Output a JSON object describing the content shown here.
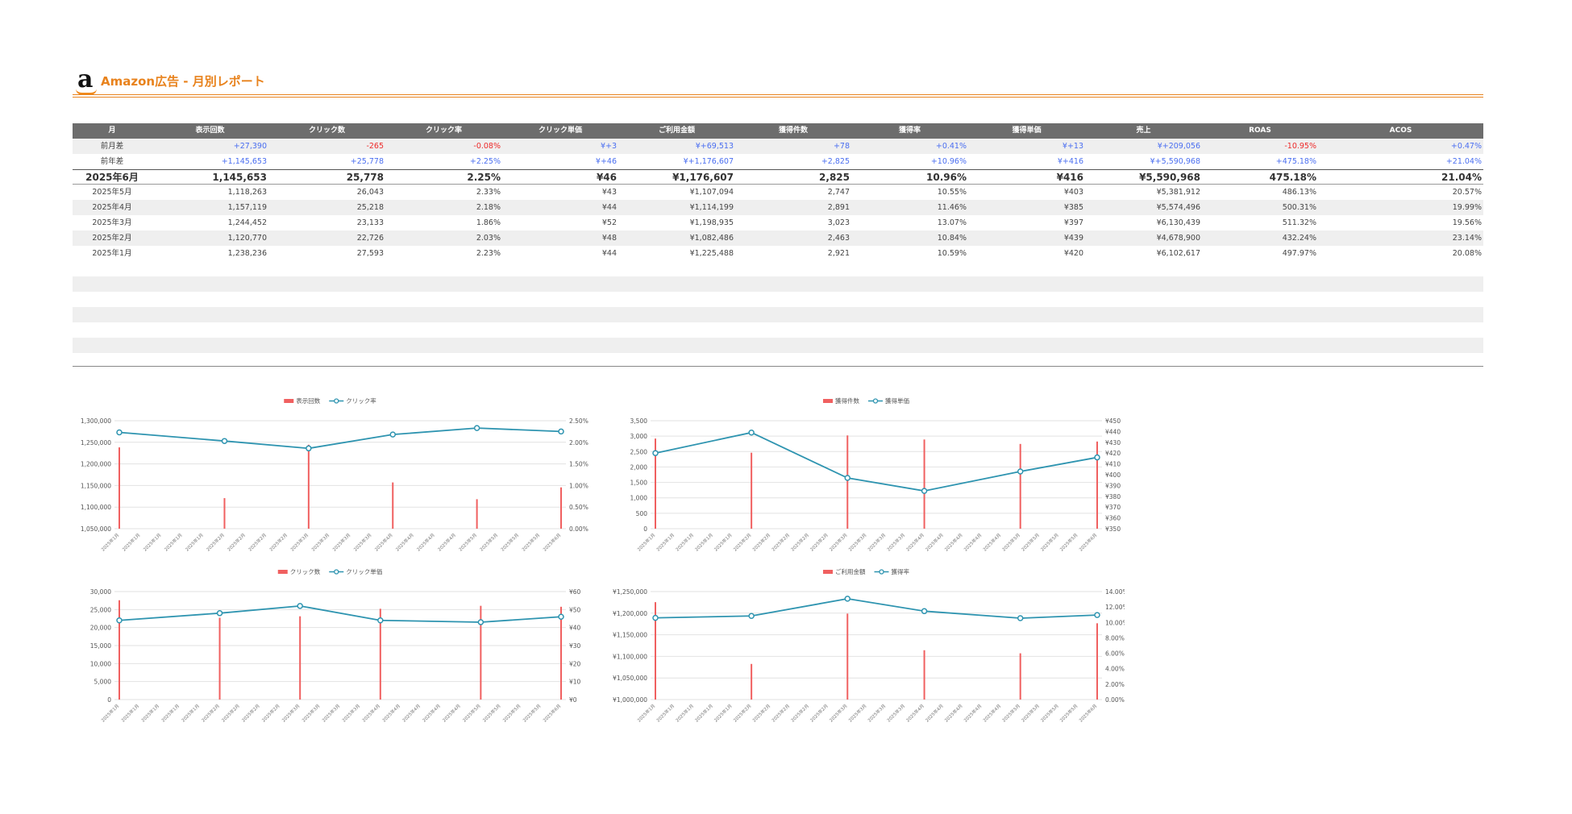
{
  "header": {
    "logo_letter": "a",
    "title": "Amazon広告 - 月別レポート"
  },
  "colors": {
    "accent": "#e8821c",
    "bar": "#f06060",
    "line": "#2e94b0",
    "header_bg": "#6d6d6d",
    "positive": "#4a6ef0",
    "negative": "#ee2a2a"
  },
  "table": {
    "columns": [
      "月",
      "表示回数",
      "クリック数",
      "クリック率",
      "クリック単価",
      "ご利用金額",
      "獲得件数",
      "獲得率",
      "獲得単価",
      "売上",
      "ROAS",
      "ACOS"
    ],
    "diff_rows": [
      {
        "label": "前月差",
        "cells": [
          {
            "v": "+27,390",
            "s": "pos"
          },
          {
            "v": "-265",
            "s": "neg"
          },
          {
            "v": "-0.08%",
            "s": "neg"
          },
          {
            "v": "¥+3",
            "s": "pos"
          },
          {
            "v": "¥+69,513",
            "s": "pos"
          },
          {
            "v": "+78",
            "s": "pos"
          },
          {
            "v": "+0.41%",
            "s": "pos"
          },
          {
            "v": "¥+13",
            "s": "pos"
          },
          {
            "v": "¥+209,056",
            "s": "pos"
          },
          {
            "v": "-10.95%",
            "s": "neg"
          },
          {
            "v": "+0.47%",
            "s": "pos"
          }
        ]
      },
      {
        "label": "前年差",
        "cells": [
          {
            "v": "+1,145,653",
            "s": "pos"
          },
          {
            "v": "+25,778",
            "s": "pos"
          },
          {
            "v": "+2.25%",
            "s": "pos"
          },
          {
            "v": "¥+46",
            "s": "pos"
          },
          {
            "v": "¥+1,176,607",
            "s": "pos"
          },
          {
            "v": "+2,825",
            "s": "pos"
          },
          {
            "v": "+10.96%",
            "s": "pos"
          },
          {
            "v": "¥+416",
            "s": "pos"
          },
          {
            "v": "¥+5,590,968",
            "s": "pos"
          },
          {
            "v": "+475.18%",
            "s": "pos"
          },
          {
            "v": "+21.04%",
            "s": "pos"
          }
        ]
      }
    ],
    "current_row": [
      "2025年6月",
      "1,145,653",
      "25,778",
      "2.25%",
      "¥46",
      "¥1,176,607",
      "2,825",
      "10.96%",
      "¥416",
      "¥5,590,968",
      "475.18%",
      "21.04%"
    ],
    "rows": [
      [
        "2025年5月",
        "1,118,263",
        "26,043",
        "2.33%",
        "¥43",
        "¥1,107,094",
        "2,747",
        "10.55%",
        "¥403",
        "¥5,381,912",
        "486.13%",
        "20.57%"
      ],
      [
        "2025年4月",
        "1,157,119",
        "25,218",
        "2.18%",
        "¥44",
        "¥1,114,199",
        "2,891",
        "11.46%",
        "¥385",
        "¥5,574,496",
        "500.31%",
        "19.99%"
      ],
      [
        "2025年3月",
        "1,244,452",
        "23,133",
        "1.86%",
        "¥52",
        "¥1,198,935",
        "3,023",
        "13.07%",
        "¥397",
        "¥6,130,439",
        "511.32%",
        "19.56%"
      ],
      [
        "2025年2月",
        "1,120,770",
        "22,726",
        "2.03%",
        "¥48",
        "¥1,082,486",
        "2,463",
        "10.84%",
        "¥439",
        "¥4,678,900",
        "432.24%",
        "23.14%"
      ],
      [
        "2025年1月",
        "1,238,236",
        "27,593",
        "2.23%",
        "¥44",
        "¥1,225,488",
        "2,921",
        "10.59%",
        "¥420",
        "¥6,102,617",
        "497.97%",
        "20.08%"
      ]
    ]
  },
  "chart_data": [
    {
      "type": "bar+line",
      "legend": [
        "表示回数",
        "クリック率"
      ],
      "x": [
        "2025年1月",
        "2025年1月",
        "2025年1月",
        "2025年1月",
        "2025年1月",
        "2025年2月",
        "2025年2月",
        "2025年2月",
        "2025年2月",
        "2025年3月",
        "2025年3月",
        "2025年3月",
        "2025年3月",
        "2025年4月",
        "2025年4月",
        "2025年4月",
        "2025年4月",
        "2025年5月",
        "2025年5月",
        "2025年5月",
        "2025年5月",
        "2025年6月"
      ],
      "bars": [
        {
          "i": 0,
          "v": 1238236
        },
        {
          "i": 5,
          "v": 1120770
        },
        {
          "i": 9,
          "v": 1244452
        },
        {
          "i": 13,
          "v": 1157119
        },
        {
          "i": 17,
          "v": 1118263
        },
        {
          "i": 21,
          "v": 1145653
        }
      ],
      "line": [
        {
          "i": 0,
          "v": 2.23
        },
        {
          "i": 5,
          "v": 2.03
        },
        {
          "i": 9,
          "v": 1.86
        },
        {
          "i": 13,
          "v": 2.18
        },
        {
          "i": 17,
          "v": 2.33
        },
        {
          "i": 21,
          "v": 2.25
        }
      ],
      "y_left": {
        "min": 1050000,
        "max": 1300000,
        "ticks": [
          "1,300,000",
          "1,250,000",
          "1,200,000",
          "1,150,000",
          "1,100,000",
          "1,050,000"
        ]
      },
      "y_right": {
        "min": 0,
        "max": 2.5,
        "ticks": [
          "2.50%",
          "2.00%",
          "1.50%",
          "1.00%",
          "0.50%",
          "0.00%"
        ]
      }
    },
    {
      "type": "bar+line",
      "legend": [
        "獲得件数",
        "獲得単価"
      ],
      "x": [
        "2025年1月",
        "2025年1月",
        "2025年1月",
        "2025年1月",
        "2025年1月",
        "2025年2月",
        "2025年2月",
        "2025年2月",
        "2025年2月",
        "2025年2月",
        "2025年3月",
        "2025年3月",
        "2025年3月",
        "2025年3月",
        "2025年4月",
        "2025年4月",
        "2025年4月",
        "2025年4月",
        "2025年4月",
        "2025年5月",
        "2025年5月",
        "2025年5月",
        "2025年5月",
        "2025年6月"
      ],
      "bars": [
        {
          "i": 0,
          "v": 2921
        },
        {
          "i": 5,
          "v": 2463
        },
        {
          "i": 10,
          "v": 3023
        },
        {
          "i": 14,
          "v": 2891
        },
        {
          "i": 19,
          "v": 2747
        },
        {
          "i": 23,
          "v": 2825
        }
      ],
      "line": [
        {
          "i": 0,
          "v": 420
        },
        {
          "i": 5,
          "v": 439
        },
        {
          "i": 10,
          "v": 397
        },
        {
          "i": 14,
          "v": 385
        },
        {
          "i": 19,
          "v": 403
        },
        {
          "i": 23,
          "v": 416
        }
      ],
      "y_left": {
        "min": 0,
        "max": 3500,
        "ticks": [
          "3,500",
          "3,000",
          "2,500",
          "2,000",
          "1,500",
          "1,000",
          "500",
          "0"
        ]
      },
      "y_right": {
        "min": 350,
        "max": 450,
        "ticks": [
          "¥450",
          "¥440",
          "¥430",
          "¥420",
          "¥410",
          "¥400",
          "¥390",
          "¥380",
          "¥370",
          "¥360",
          "¥350"
        ]
      }
    },
    {
      "type": "bar+line",
      "legend": [
        "クリック数",
        "クリック単価"
      ],
      "x": [
        "2025年1月",
        "2025年1月",
        "2025年1月",
        "2025年1月",
        "2025年1月",
        "2025年2月",
        "2025年2月",
        "2025年2月",
        "2025年2月",
        "2025年3月",
        "2025年3月",
        "2025年3月",
        "2025年3月",
        "2025年4月",
        "2025年4月",
        "2025年4月",
        "2025年4月",
        "2025年4月",
        "2025年5月",
        "2025年5月",
        "2025年5月",
        "2025年5月",
        "2025年6月"
      ],
      "bars": [
        {
          "i": 0,
          "v": 27593
        },
        {
          "i": 5,
          "v": 22726
        },
        {
          "i": 9,
          "v": 23133
        },
        {
          "i": 13,
          "v": 25218
        },
        {
          "i": 18,
          "v": 26043
        },
        {
          "i": 22,
          "v": 25778
        }
      ],
      "line": [
        {
          "i": 0,
          "v": 44
        },
        {
          "i": 5,
          "v": 48
        },
        {
          "i": 9,
          "v": 52
        },
        {
          "i": 13,
          "v": 44
        },
        {
          "i": 18,
          "v": 43
        },
        {
          "i": 22,
          "v": 46
        }
      ],
      "y_left": {
        "min": 0,
        "max": 30000,
        "ticks": [
          "30,000",
          "25,000",
          "20,000",
          "15,000",
          "10,000",
          "5,000",
          "0"
        ]
      },
      "y_right": {
        "min": 0,
        "max": 60,
        "ticks": [
          "¥60",
          "¥50",
          "¥40",
          "¥30",
          "¥20",
          "¥10",
          "¥0"
        ]
      }
    },
    {
      "type": "bar+line",
      "legend": [
        "ご利用金額",
        "獲得率"
      ],
      "x": [
        "2025年1月",
        "2025年1月",
        "2025年1月",
        "2025年1月",
        "2025年1月",
        "2025年2月",
        "2025年2月",
        "2025年2月",
        "2025年2月",
        "2025年2月",
        "2025年3月",
        "2025年3月",
        "2025年3月",
        "2025年3月",
        "2025年4月",
        "2025年4月",
        "2025年4月",
        "2025年4月",
        "2025年4月",
        "2025年5月",
        "2025年5月",
        "2025年5月",
        "2025年5月",
        "2025年6月"
      ],
      "bars": [
        {
          "i": 0,
          "v": 1225488
        },
        {
          "i": 5,
          "v": 1082486
        },
        {
          "i": 10,
          "v": 1198935
        },
        {
          "i": 14,
          "v": 1114199
        },
        {
          "i": 19,
          "v": 1107094
        },
        {
          "i": 23,
          "v": 1176607
        }
      ],
      "line": [
        {
          "i": 0,
          "v": 10.59
        },
        {
          "i": 5,
          "v": 10.84
        },
        {
          "i": 10,
          "v": 13.07
        },
        {
          "i": 14,
          "v": 11.46
        },
        {
          "i": 19,
          "v": 10.55
        },
        {
          "i": 23,
          "v": 10.96
        }
      ],
      "y_left": {
        "min": 1000000,
        "max": 1250000,
        "ticks": [
          "¥1,250,000",
          "¥1,200,000",
          "¥1,150,000",
          "¥1,100,000",
          "¥1,050,000",
          "¥1,000,000"
        ]
      },
      "y_right": {
        "min": 0,
        "max": 14,
        "ticks": [
          "14.00%",
          "12.00%",
          "10.00%",
          "8.00%",
          "6.00%",
          "4.00%",
          "2.00%",
          "0.00%"
        ]
      }
    }
  ]
}
